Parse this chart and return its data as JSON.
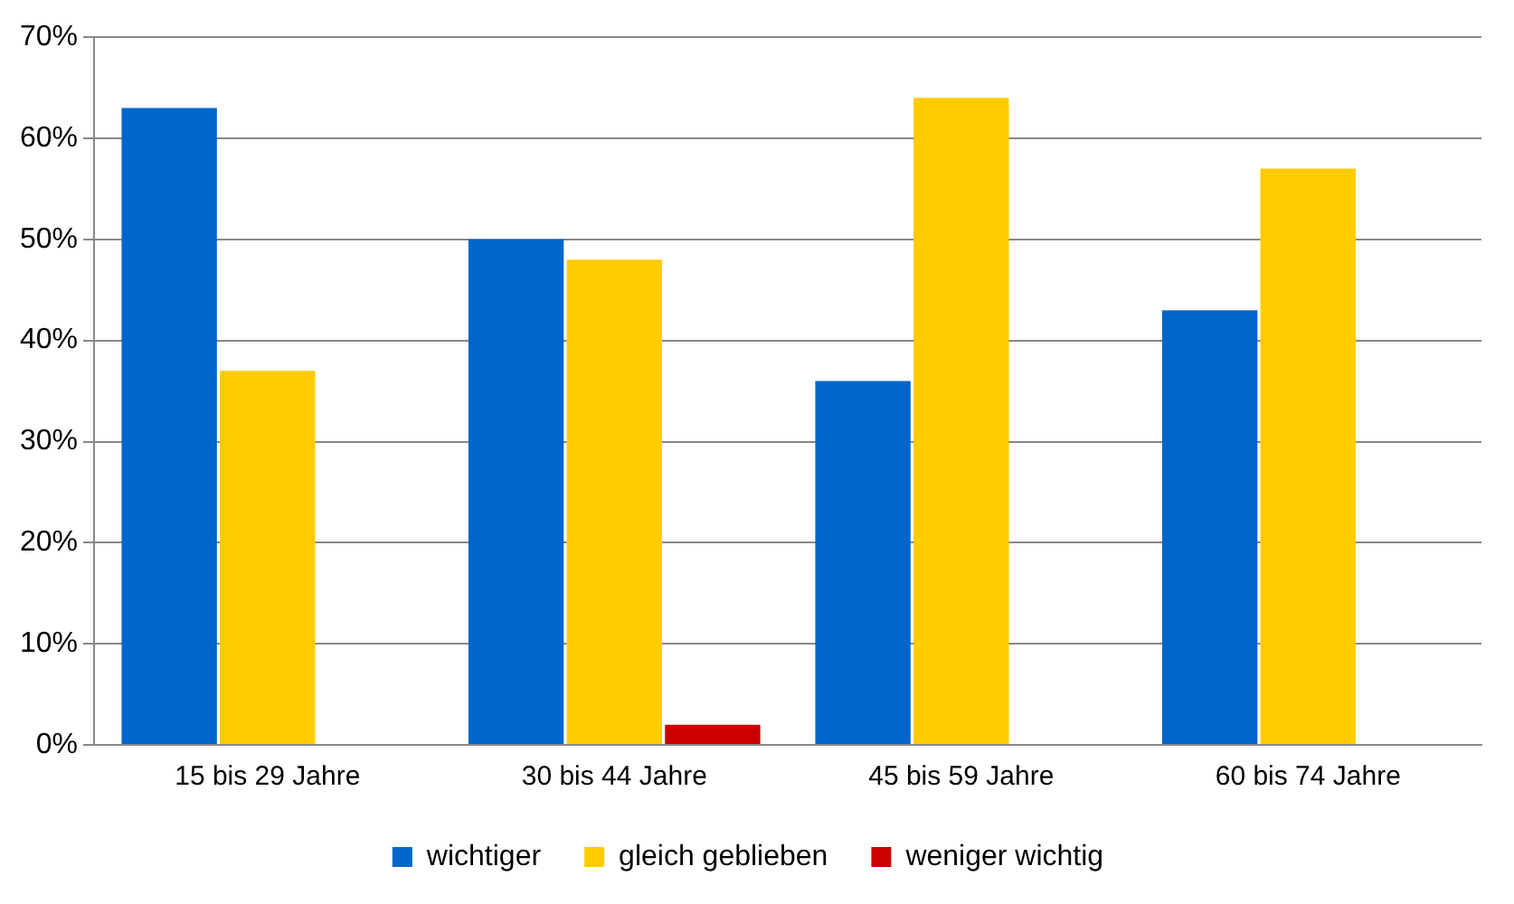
{
  "chart_data": {
    "type": "bar",
    "categories": [
      "15 bis 29 Jahre",
      "30 bis 44 Jahre",
      "45 bis 59 Jahre",
      "60 bis 74 Jahre"
    ],
    "series": [
      {
        "name": "wichtiger",
        "color": "#0066cc",
        "values": [
          63,
          50,
          36,
          43
        ]
      },
      {
        "name": "gleich geblieben",
        "color": "#ffcc00",
        "values": [
          37,
          48,
          64,
          57
        ]
      },
      {
        "name": "weniger wichtig",
        "color": "#cc0000",
        "values": [
          0,
          2,
          0,
          0
        ]
      }
    ],
    "ylim": [
      0,
      70
    ],
    "yticks": [
      {
        "value": 0,
        "label": "0%"
      },
      {
        "value": 10,
        "label": "10%"
      },
      {
        "value": 20,
        "label": "20%"
      },
      {
        "value": 30,
        "label": "30%"
      },
      {
        "value": 40,
        "label": "40%"
      },
      {
        "value": 50,
        "label": "50%"
      },
      {
        "value": 60,
        "label": "60%"
      },
      {
        "value": 70,
        "label": "70%"
      }
    ],
    "grid": "y",
    "legend": "bottom"
  }
}
